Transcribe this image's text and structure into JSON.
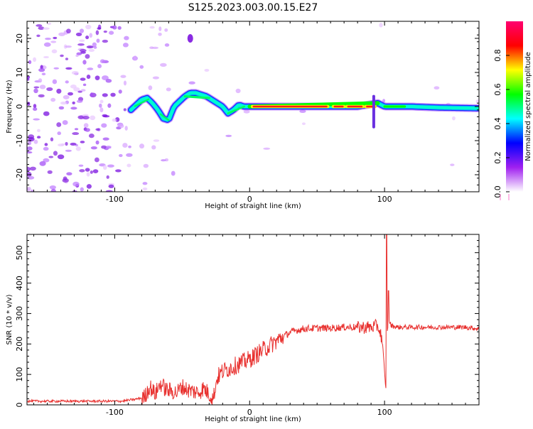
{
  "title": "S125.2023.003.00.15.E27",
  "chart_data": [
    {
      "type": "heatmap",
      "title": "S125.2023.003.00.15.E27",
      "xlabel": "Height of straight line (km)",
      "ylabel": "Frequency (Hz)",
      "xlim": [
        -165,
        170
      ],
      "ylim": [
        -25,
        25
      ],
      "xticks": [
        -100,
        0,
        100
      ],
      "yticks": [
        -20,
        -10,
        0,
        10,
        20
      ],
      "xtick_labels": [
        "-100",
        "0",
        "100"
      ],
      "ytick_labels": [
        "-20",
        "-10",
        "0",
        "10",
        "20"
      ],
      "colorbar": {
        "label": "Normalized spectral amplitude",
        "range": [
          0,
          1
        ],
        "ticks": [
          0.0,
          0.2,
          0.4,
          0.6,
          0.8
        ],
        "tick_labels": [
          "0.0",
          "0.2",
          "0.4",
          "0.6",
          "0.8"
        ],
        "colors": [
          "#ffffff",
          "#a020f0",
          "#0000ff",
          "#00ffff",
          "#00ff00",
          "#ffff00",
          "#ff0000",
          "#ff0070"
        ]
      },
      "center_line": [
        [
          -88,
          -1
        ],
        [
          -84,
          0.5
        ],
        [
          -80,
          2
        ],
        [
          -76,
          2.5
        ],
        [
          -72,
          1
        ],
        [
          -68,
          -1
        ],
        [
          -64,
          -3.5
        ],
        [
          -60,
          -4
        ],
        [
          -56,
          0
        ],
        [
          -52,
          1.5
        ],
        [
          -48,
          3
        ],
        [
          -44,
          4
        ],
        [
          -40,
          4
        ],
        [
          -36,
          3.5
        ],
        [
          -32,
          3
        ],
        [
          -28,
          2
        ],
        [
          -24,
          1
        ],
        [
          -20,
          0
        ],
        [
          -16,
          -2
        ],
        [
          -12,
          -1
        ],
        [
          -8,
          0.5
        ],
        [
          -4,
          0
        ],
        [
          0,
          0
        ],
        [
          20,
          0
        ],
        [
          40,
          0
        ],
        [
          60,
          0
        ],
        [
          80,
          0
        ],
        [
          95,
          1
        ],
        [
          100,
          0
        ],
        [
          120,
          0
        ],
        [
          140,
          -0.3
        ],
        [
          170,
          -0.5
        ]
      ]
    },
    {
      "type": "line",
      "xlabel": "Height of straight line (km)",
      "ylabel": "SNR (10 * v/v)",
      "xlim": [
        -165,
        170
      ],
      "ylim": [
        0,
        560
      ],
      "xticks": [
        -100,
        0,
        100
      ],
      "yticks": [
        0,
        100,
        200,
        300,
        400,
        500
      ],
      "xtick_labels": [
        "-100",
        "0",
        "100"
      ],
      "ytick_labels": [
        "0",
        "100",
        "200",
        "300",
        "400",
        "500"
      ],
      "color": "#e8302e",
      "series": [
        {
          "x": [
            -165,
            -150,
            -130,
            -110,
            -95,
            -85,
            -78,
            -74,
            -70,
            -66,
            -62,
            -58,
            -54,
            -50,
            -46,
            -42,
            -38,
            -34,
            -30,
            -27,
            -24,
            -20,
            -15,
            -10,
            -5,
            0,
            5,
            10,
            15,
            20,
            25,
            30,
            35,
            40,
            50,
            60,
            70,
            80,
            90,
            95,
            98,
            100,
            101,
            102,
            103,
            105,
            110,
            120,
            130,
            140,
            150,
            160,
            170
          ],
          "y": [
            12,
            12,
            12,
            12,
            12,
            18,
            25,
            60,
            35,
            70,
            50,
            45,
            40,
            60,
            50,
            45,
            40,
            55,
            35,
            20,
            90,
            110,
            120,
            130,
            140,
            150,
            165,
            180,
            195,
            210,
            225,
            238,
            245,
            250,
            252,
            252,
            255,
            255,
            255,
            260,
            220,
            100,
            55,
            240,
            280,
            260,
            255,
            255,
            255,
            255,
            255,
            255,
            250
          ]
        }
      ]
    }
  ]
}
